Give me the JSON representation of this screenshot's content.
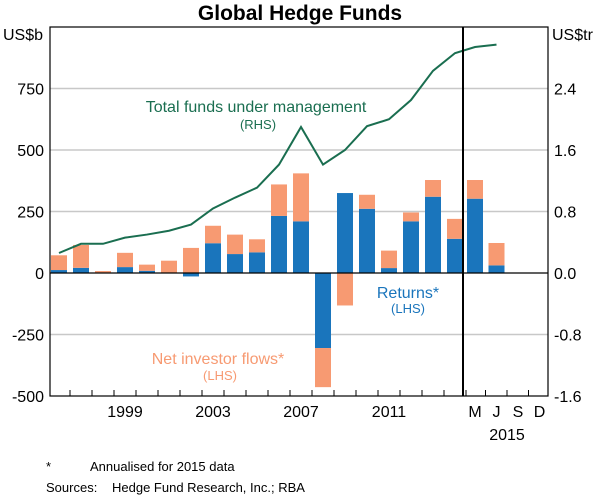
{
  "chart_data": {
    "type": "bar",
    "title": "Global Hedge Funds",
    "left_unit": "US$b",
    "right_unit": "US$tr",
    "left_ylim": [
      -500,
      1000
    ],
    "right_ylim": [
      -1.6,
      3.2
    ],
    "left_ticks": [
      "750",
      "500",
      "250",
      "0",
      "-250",
      "-500"
    ],
    "left_tick_values": [
      750,
      500,
      250,
      0,
      -250,
      -500
    ],
    "right_ticks": [
      "2.4",
      "1.6",
      "0.8",
      "0.0",
      "-0.8",
      "-1.6"
    ],
    "right_tick_values": [
      2.4,
      1.6,
      0.8,
      0,
      -0.8,
      -1.6
    ],
    "x_labels": [
      "1999",
      "2003",
      "2007",
      "2011"
    ],
    "quarter_labels": [
      "M",
      "J",
      "S",
      "D"
    ],
    "year_2015_label": "2015",
    "categories": [
      "1996",
      "1997",
      "1998",
      "1999",
      "2000",
      "2001",
      "2002",
      "2003",
      "2004",
      "2005",
      "2006",
      "2007",
      "2008",
      "2009",
      "2010",
      "2011",
      "2012",
      "2013",
      "2014",
      "2015-Mar",
      "2015-Jun"
    ],
    "series": [
      {
        "name": "Returns*",
        "axis": "LHS",
        "color": "#1a75bc",
        "values": [
          12,
          21,
          0,
          24,
          9,
          0,
          -14,
          121,
          77,
          84,
          232,
          210,
          -305,
          325,
          261,
          20,
          210,
          310,
          139,
          302,
          31
        ]
      },
      {
        "name": "Net investor flows*",
        "axis": "LHS",
        "color": "#f79a72",
        "values": [
          60,
          93,
          8,
          58,
          25,
          50,
          102,
          71,
          79,
          53,
          128,
          195,
          -159,
          -132,
          57,
          71,
          36,
          68,
          81,
          76,
          91
        ]
      },
      {
        "name": "Total funds under management",
        "axis": "RHS",
        "color": "#1a6e50",
        "type": "line",
        "values": [
          0.26,
          0.38,
          0.38,
          0.46,
          0.5,
          0.55,
          0.63,
          0.84,
          0.98,
          1.11,
          1.41,
          1.9,
          1.41,
          1.6,
          1.91,
          2.0,
          2.25,
          2.63,
          2.86,
          2.94,
          2.97
        ]
      }
    ],
    "annotations": {
      "funds_label": "Total funds under management",
      "funds_sub": "(RHS)",
      "returns_label": "Returns*",
      "returns_sub": "(LHS)",
      "flows_label": "Net investor flows*",
      "flows_sub": "(LHS)"
    },
    "grid": true
  },
  "footnotes": {
    "star": "*",
    "note": "Annualised for 2015 data",
    "sources_label": "Sources:",
    "sources": "Hedge Fund Research, Inc.; RBA"
  }
}
